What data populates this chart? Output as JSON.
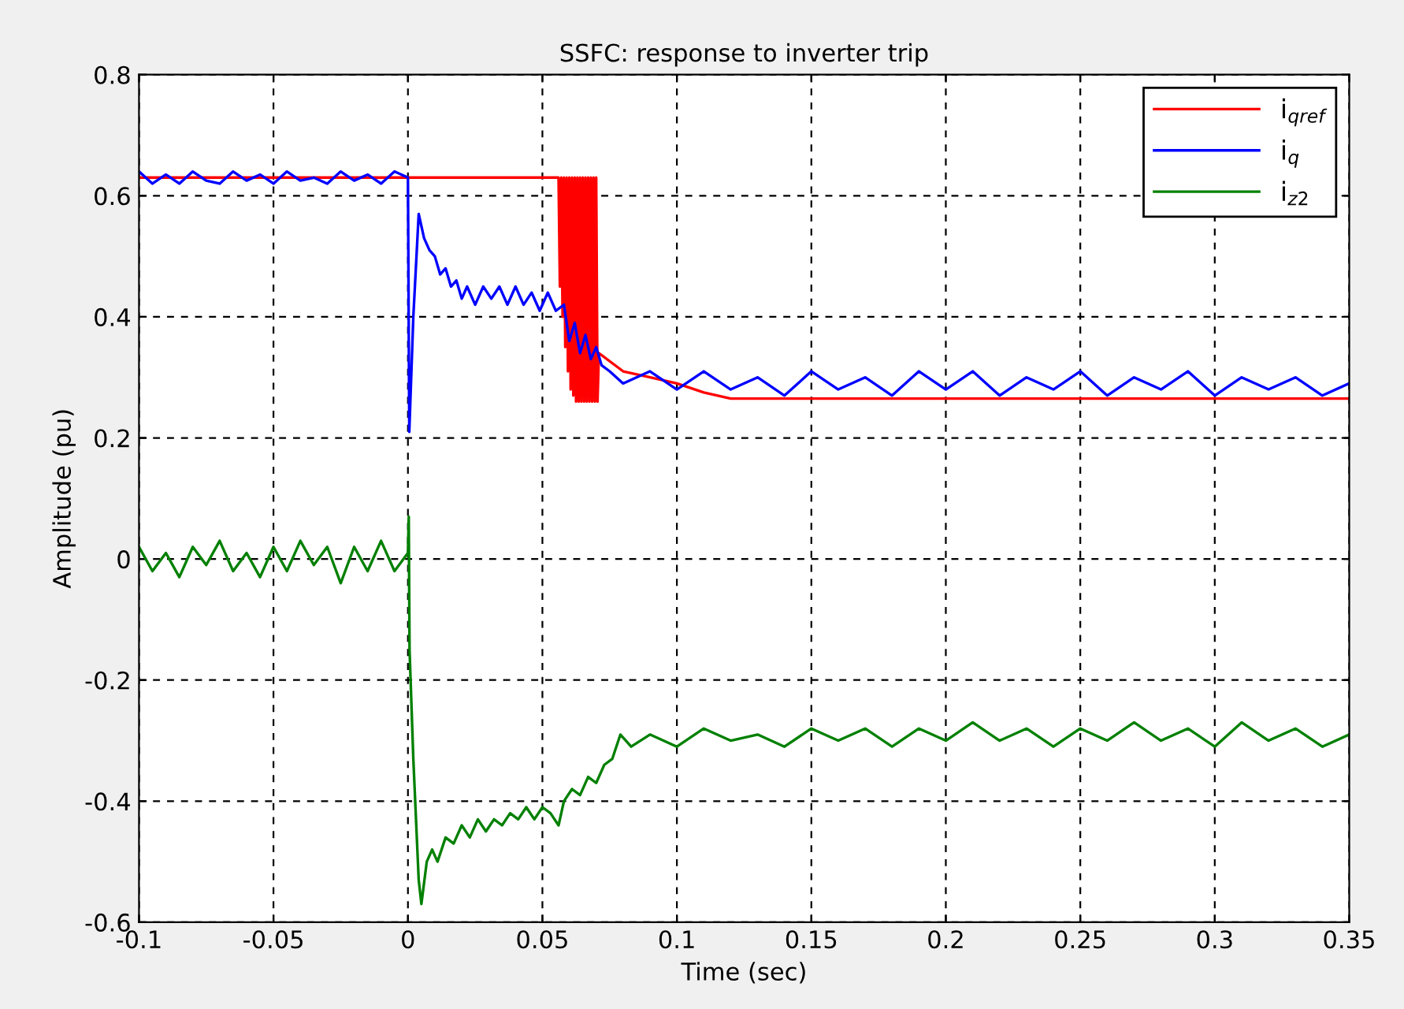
{
  "chart_data": {
    "type": "line",
    "title": "SSFC: response to inverter trip",
    "xlabel": "Time (sec)",
    "ylabel": "Amplitude (pu)",
    "xlim": [
      -0.1,
      0.35
    ],
    "ylim": [
      -0.6,
      0.8
    ],
    "xticks": [
      -0.1,
      -0.05,
      0,
      0.05,
      0.1,
      0.15,
      0.2,
      0.25,
      0.3,
      0.35
    ],
    "yticks": [
      -0.6,
      -0.4,
      -0.2,
      0,
      0.2,
      0.4,
      0.6,
      0.8
    ],
    "grid": true,
    "legend": "top right",
    "line_style": "solid",
    "marker": "none",
    "series": [
      {
        "name": "i$_{qref}$",
        "color": "#ff0000",
        "x": [
          -0.1,
          0.056,
          0.0565,
          0.057,
          0.0575,
          0.058,
          0.0585,
          0.059,
          0.0595,
          0.06,
          0.0605,
          0.061,
          0.0615,
          0.062,
          0.0625,
          0.063,
          0.0635,
          0.064,
          0.0645,
          0.065,
          0.0655,
          0.066,
          0.0665,
          0.067,
          0.0675,
          0.068,
          0.0685,
          0.069,
          0.0695,
          0.07,
          0.0705,
          0.071,
          0.08,
          0.09,
          0.1,
          0.11,
          0.12,
          0.35
        ],
        "values": [
          0.63,
          0.63,
          0.45,
          0.63,
          0.4,
          0.63,
          0.35,
          0.63,
          0.31,
          0.63,
          0.28,
          0.63,
          0.27,
          0.63,
          0.26,
          0.63,
          0.26,
          0.63,
          0.26,
          0.63,
          0.26,
          0.63,
          0.26,
          0.63,
          0.26,
          0.63,
          0.26,
          0.63,
          0.26,
          0.63,
          0.26,
          0.34,
          0.31,
          0.3,
          0.29,
          0.275,
          0.265,
          0.265
        ]
      },
      {
        "name": "i$_{q}$",
        "color": "#0000ff",
        "x": [
          -0.1,
          -0.095,
          -0.09,
          -0.085,
          -0.08,
          -0.075,
          -0.07,
          -0.065,
          -0.06,
          -0.055,
          -0.05,
          -0.045,
          -0.04,
          -0.035,
          -0.03,
          -0.025,
          -0.02,
          -0.015,
          -0.01,
          -0.005,
          0,
          0.0005,
          0.002,
          0.004,
          0.006,
          0.008,
          0.01,
          0.012,
          0.014,
          0.016,
          0.018,
          0.02,
          0.022,
          0.025,
          0.028,
          0.031,
          0.034,
          0.037,
          0.04,
          0.043,
          0.046,
          0.049,
          0.052,
          0.055,
          0.058,
          0.06,
          0.062,
          0.064,
          0.066,
          0.068,
          0.07,
          0.072,
          0.075,
          0.08,
          0.09,
          0.1,
          0.11,
          0.12,
          0.13,
          0.14,
          0.15,
          0.16,
          0.17,
          0.18,
          0.19,
          0.2,
          0.21,
          0.22,
          0.23,
          0.24,
          0.25,
          0.26,
          0.27,
          0.28,
          0.29,
          0.3,
          0.31,
          0.32,
          0.33,
          0.34,
          0.35
        ],
        "values": [
          0.64,
          0.62,
          0.635,
          0.62,
          0.64,
          0.625,
          0.62,
          0.64,
          0.625,
          0.635,
          0.62,
          0.64,
          0.625,
          0.63,
          0.62,
          0.64,
          0.625,
          0.635,
          0.62,
          0.64,
          0.63,
          0.21,
          0.4,
          0.57,
          0.53,
          0.51,
          0.5,
          0.47,
          0.48,
          0.45,
          0.46,
          0.43,
          0.45,
          0.42,
          0.45,
          0.43,
          0.45,
          0.42,
          0.45,
          0.42,
          0.44,
          0.41,
          0.44,
          0.41,
          0.42,
          0.36,
          0.39,
          0.34,
          0.37,
          0.33,
          0.35,
          0.32,
          0.31,
          0.29,
          0.31,
          0.28,
          0.31,
          0.28,
          0.3,
          0.27,
          0.31,
          0.28,
          0.3,
          0.27,
          0.31,
          0.28,
          0.31,
          0.27,
          0.3,
          0.28,
          0.31,
          0.27,
          0.3,
          0.28,
          0.31,
          0.27,
          0.3,
          0.28,
          0.3,
          0.27,
          0.29
        ]
      },
      {
        "name": "i$_{z2}$",
        "color": "#008000",
        "x": [
          -0.1,
          -0.095,
          -0.09,
          -0.085,
          -0.08,
          -0.075,
          -0.07,
          -0.065,
          -0.06,
          -0.055,
          -0.05,
          -0.045,
          -0.04,
          -0.035,
          -0.03,
          -0.025,
          -0.02,
          -0.015,
          -0.01,
          -0.005,
          0,
          0.0003,
          0.0006,
          0.002,
          0.004,
          0.005,
          0.007,
          0.009,
          0.011,
          0.014,
          0.017,
          0.02,
          0.023,
          0.026,
          0.029,
          0.032,
          0.035,
          0.038,
          0.041,
          0.044,
          0.047,
          0.05,
          0.053,
          0.056,
          0.058,
          0.061,
          0.064,
          0.067,
          0.07,
          0.073,
          0.076,
          0.079,
          0.083,
          0.09,
          0.1,
          0.11,
          0.12,
          0.13,
          0.14,
          0.15,
          0.16,
          0.17,
          0.18,
          0.19,
          0.2,
          0.21,
          0.22,
          0.23,
          0.24,
          0.25,
          0.26,
          0.27,
          0.28,
          0.29,
          0.3,
          0.31,
          0.32,
          0.33,
          0.34,
          0.35
        ],
        "values": [
          0.02,
          -0.02,
          0.01,
          -0.03,
          0.02,
          -0.01,
          0.03,
          -0.02,
          0.01,
          -0.03,
          0.02,
          -0.02,
          0.03,
          -0.01,
          0.02,
          -0.04,
          0.02,
          -0.02,
          0.03,
          -0.02,
          0.01,
          0.07,
          -0.15,
          -0.33,
          -0.53,
          -0.57,
          -0.5,
          -0.48,
          -0.5,
          -0.46,
          -0.47,
          -0.44,
          -0.46,
          -0.43,
          -0.45,
          -0.43,
          -0.44,
          -0.42,
          -0.43,
          -0.41,
          -0.43,
          -0.41,
          -0.42,
          -0.44,
          -0.4,
          -0.38,
          -0.39,
          -0.36,
          -0.37,
          -0.34,
          -0.33,
          -0.29,
          -0.31,
          -0.29,
          -0.31,
          -0.28,
          -0.3,
          -0.29,
          -0.31,
          -0.28,
          -0.3,
          -0.28,
          -0.31,
          -0.28,
          -0.3,
          -0.27,
          -0.3,
          -0.28,
          -0.31,
          -0.28,
          -0.3,
          -0.27,
          -0.3,
          -0.28,
          -0.31,
          -0.27,
          -0.3,
          -0.28,
          -0.31,
          -0.29
        ]
      }
    ]
  }
}
